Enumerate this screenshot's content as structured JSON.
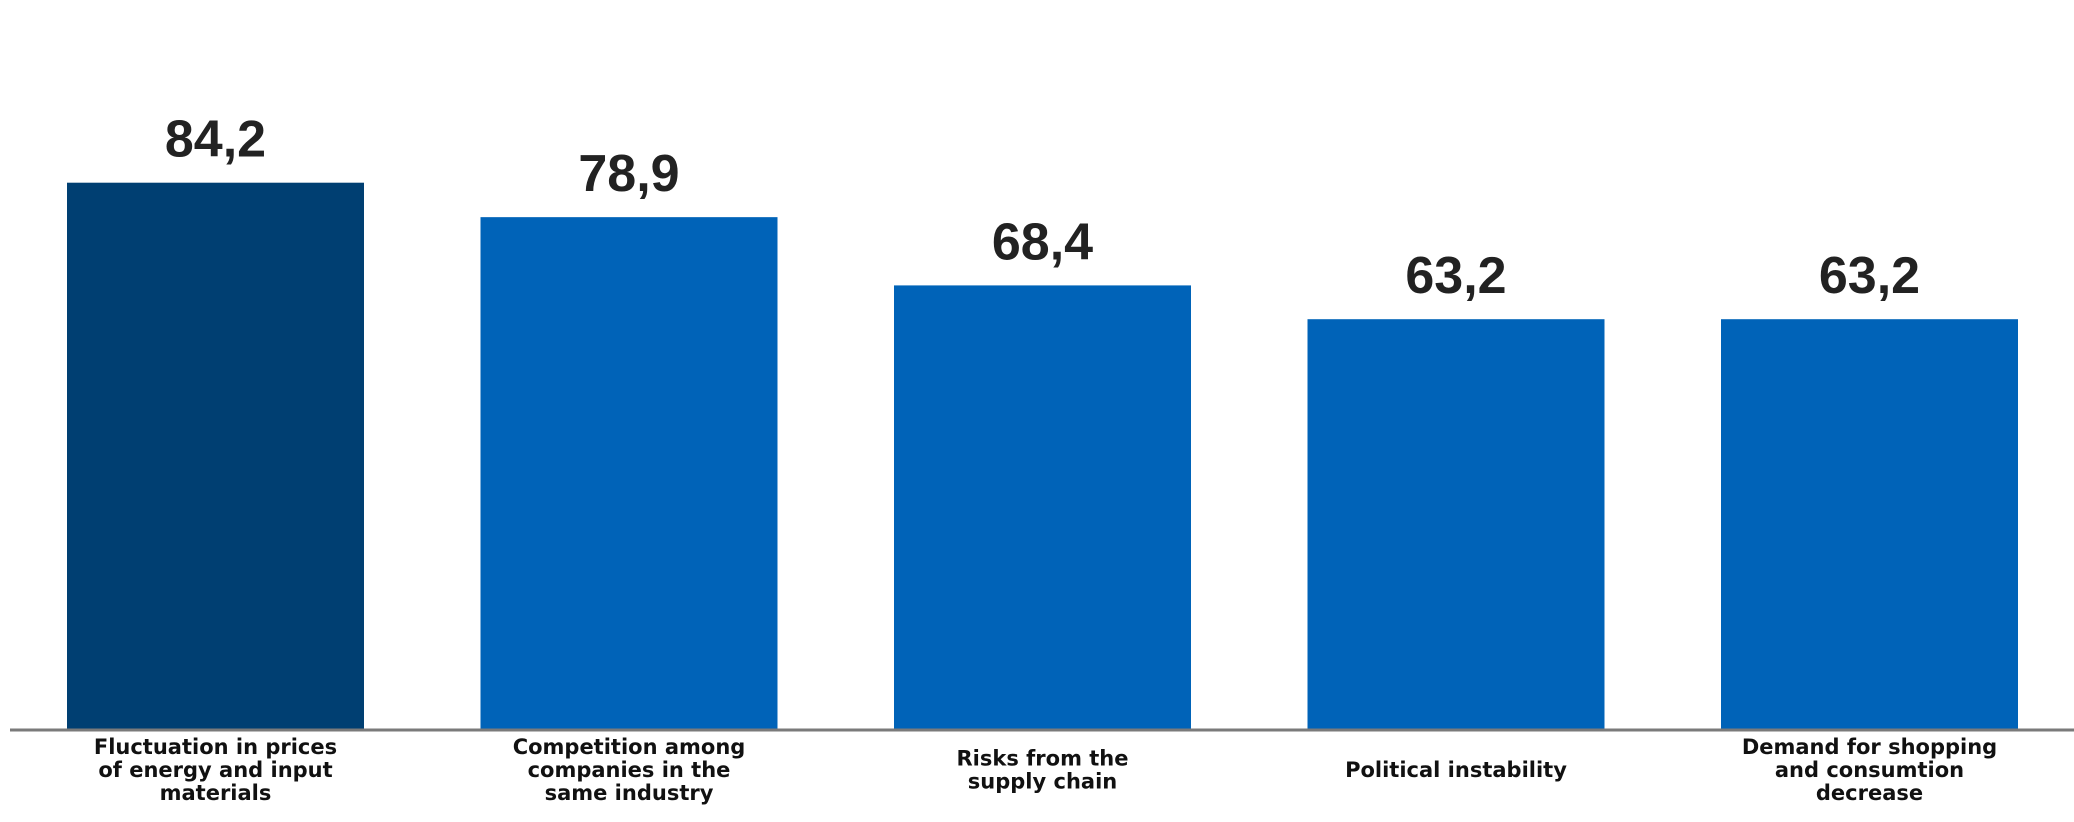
{
  "chart_data": {
    "type": "bar",
    "categories": [
      [
        "Fluctuation in prices",
        "of energy and input",
        "materials"
      ],
      [
        "Competition among",
        "companies in the",
        "same industry"
      ],
      [
        "Risks from the",
        "supply chain"
      ],
      [
        "Political instability"
      ],
      [
        "Demand for shopping",
        "and consumtion",
        "decrease"
      ]
    ],
    "values": [
      84.2,
      78.9,
      68.4,
      63.2,
      63.2
    ],
    "value_labels": [
      "84,2",
      "78,9",
      "68,4",
      "63,2",
      "63,2"
    ],
    "title": "",
    "xlabel": "",
    "ylabel": "",
    "ylim": [
      0,
      90
    ],
    "grid": false,
    "colors": {
      "highlight": "#003f72",
      "default": "#0063b8",
      "axis": "#7a7a7a"
    },
    "highlight_index": 0
  }
}
